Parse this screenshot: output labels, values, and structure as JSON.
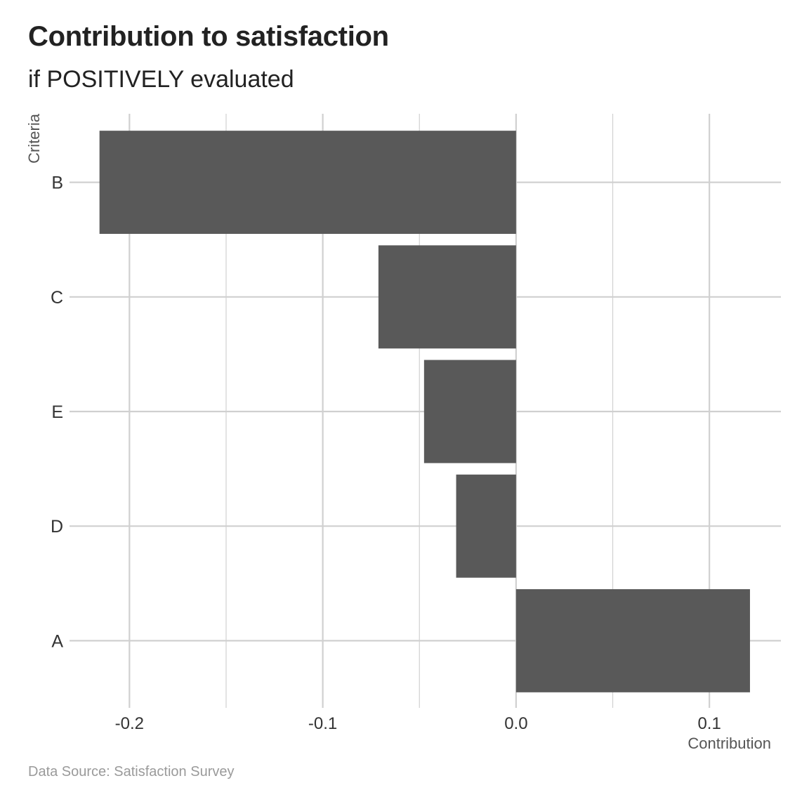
{
  "chart_data": {
    "type": "bar",
    "orientation": "horizontal",
    "title": "Contribution to satisfaction",
    "subtitle": "if POSITIVELY evaluated",
    "xlabel": "Contribution",
    "ylabel": "Criteria",
    "caption": "Data Source: Satisfaction Survey",
    "categories": [
      "B",
      "C",
      "E",
      "D",
      "A"
    ],
    "values": [
      -0.2155,
      -0.0712,
      -0.0476,
      -0.031,
      0.121
    ],
    "xlim": [
      -0.231,
      0.137
    ],
    "xticks": [
      -0.2,
      -0.1,
      0.0,
      0.1
    ],
    "xtick_labels": [
      "-0.2",
      "-0.1",
      "0.0",
      "0.1"
    ],
    "grid": true,
    "bar_color": "#595959",
    "grid_color": "#d0d0d0"
  }
}
